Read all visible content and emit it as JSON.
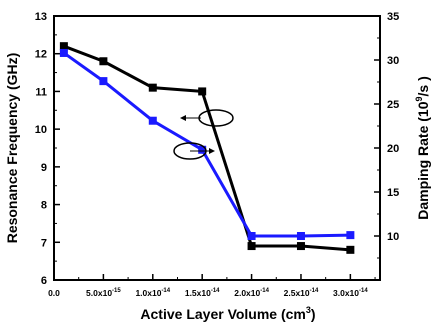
{
  "chart_data": {
    "type": "line",
    "xlabel": "Active Layer Volume (cm",
    "xlabel_sup": "3",
    "xlabel_end": ")",
    "ylabel_left": "Resonance Frequency (GHz)",
    "ylabel_right_main": "Damping Rate (10",
    "ylabel_right_sup": "9",
    "ylabel_right_end": "/s )",
    "xlim": [
      0,
      3.3e-14
    ],
    "ylim_left": [
      6,
      13
    ],
    "ylim_right": [
      5,
      35
    ],
    "x_ticks": [
      {
        "value": 0,
        "label": "0.0"
      },
      {
        "value": 5e-15,
        "label": "5.0x10",
        "exp": "-15"
      },
      {
        "value": 1e-14,
        "label": "1.0x10",
        "exp": "-14"
      },
      {
        "value": 1.5e-14,
        "label": "1.5x10",
        "exp": "-14"
      },
      {
        "value": 2e-14,
        "label": "2.0x10",
        "exp": "-14"
      },
      {
        "value": 2.5e-14,
        "label": "2.5x10",
        "exp": "-14"
      },
      {
        "value": 3e-14,
        "label": "3.0x10",
        "exp": "-14"
      }
    ],
    "y_left_ticks": [
      "6",
      "7",
      "8",
      "9",
      "10",
      "11",
      "12",
      "13"
    ],
    "y_right_ticks": [
      "10",
      "15",
      "20",
      "25",
      "30",
      "35"
    ],
    "x": [
      1e-15,
      5e-15,
      1e-14,
      1.5e-14,
      2e-14,
      2.5e-14,
      3e-14
    ],
    "series": [
      {
        "axis": "left",
        "color": "#000000",
        "marker": "square",
        "values": [
          12.2,
          11.8,
          11.1,
          11.0,
          6.9,
          6.9,
          6.8
        ]
      },
      {
        "axis": "right",
        "color": "#1a1aff",
        "marker": "square",
        "values": [
          30.8,
          27.6,
          23.1,
          19.8,
          10.0,
          10.0,
          10.1
        ]
      }
    ],
    "annotations": [
      {
        "type": "ellipse-arrow",
        "points_to": "left",
        "series_axis": "left"
      },
      {
        "type": "ellipse-arrow",
        "points_to": "right",
        "series_axis": "right"
      }
    ]
  }
}
